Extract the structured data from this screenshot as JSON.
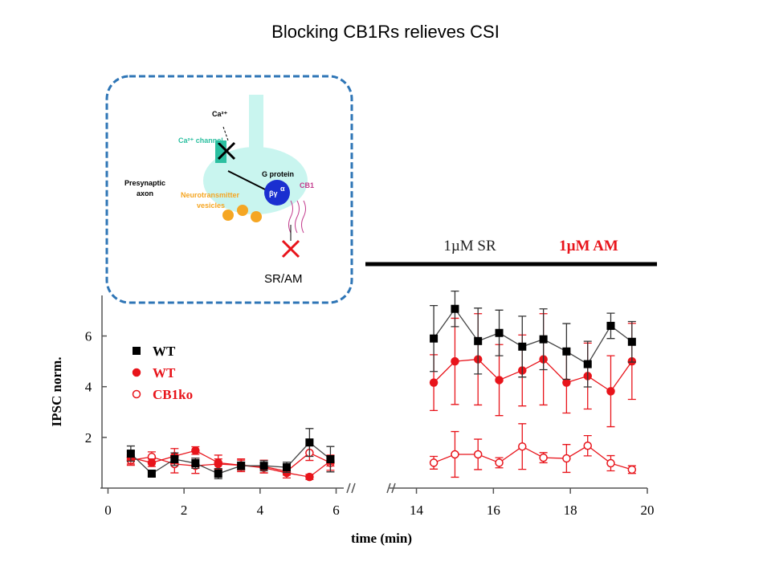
{
  "title": "Blocking CB1Rs relieves CSI",
  "diagram": {
    "ca_ion": "Ca²⁺",
    "ca_channel": "Ca²⁺ channel",
    "axon": [
      "Presynaptic",
      "axon"
    ],
    "g_protein": "G protein",
    "vesicles": [
      "Neurotransmitter",
      "vesicles"
    ],
    "receptor": "CB1",
    "beta_gamma": "βγ",
    "alpha": "α",
    "drug": "SR/AM"
  },
  "chart_data": {
    "type": "line",
    "y_label": "IPSC norm.",
    "x_label": "time (min)",
    "ylim": [
      0,
      7.6
    ],
    "yticks": [
      2,
      4,
      6
    ],
    "segments": [
      {
        "xlim": [
          -0.2,
          6.2
        ],
        "xticks": [
          0,
          2,
          4,
          6
        ]
      },
      {
        "xlim": [
          13.3,
          20
        ],
        "xticks": [
          14,
          16,
          18,
          20
        ]
      }
    ],
    "annotations": [
      {
        "text": "1µM SR",
        "color": "#222222"
      },
      {
        "text": "1µM AM",
        "color": "#e8141b"
      }
    ],
    "x": [
      0.6,
      1.15,
      1.75,
      2.3,
      2.9,
      3.5,
      4.1,
      4.7,
      5.3,
      5.85,
      14.45,
      15.0,
      15.6,
      16.15,
      16.75,
      17.3,
      17.9,
      18.45,
      19.05,
      19.6
    ],
    "series": [
      {
        "name": "CB1ko",
        "color": "#e8141b",
        "marker": "open-circle",
        "values": [
          1.1,
          1.23,
          0.95,
          0.88,
          0.95,
          0.9,
          0.85,
          0.66,
          1.39,
          1.0,
          1.0,
          1.33,
          1.33,
          1.0,
          1.64,
          1.2,
          1.17,
          1.67,
          0.98,
          0.73
        ],
        "errors": [
          0.2,
          0.2,
          0.35,
          0.3,
          0.2,
          0.2,
          0.25,
          0.15,
          0.3,
          0.3,
          0.25,
          0.9,
          0.6,
          0.2,
          0.9,
          0.2,
          0.55,
          0.4,
          0.3,
          0.15
        ]
      },
      {
        "name": "WT",
        "color": "#e8141b",
        "marker": "circle",
        "values": [
          1.2,
          1.0,
          1.26,
          1.48,
          1.0,
          0.9,
          0.8,
          0.6,
          0.44,
          1.07,
          4.16,
          5.0,
          5.08,
          4.26,
          4.64,
          5.08,
          4.16,
          4.42,
          3.82,
          5.0
        ],
        "errors": [
          0.25,
          0.15,
          0.3,
          0.15,
          0.3,
          0.25,
          0.2,
          0.2,
          0.1,
          0.2,
          1.1,
          1.7,
          1.8,
          1.4,
          1.4,
          1.8,
          1.2,
          1.3,
          1.4,
          1.5
        ]
      },
      {
        "name": "WT",
        "color": "#000000",
        "marker": "square",
        "values": [
          1.36,
          0.57,
          1.14,
          0.98,
          0.57,
          0.88,
          0.88,
          0.82,
          1.8,
          1.14,
          5.9,
          7.07,
          5.8,
          6.12,
          5.58,
          5.87,
          5.39,
          4.89,
          6.4,
          5.77
        ],
        "errors": [
          0.3,
          0.1,
          0.25,
          0.2,
          0.2,
          0.15,
          0.2,
          0.2,
          0.55,
          0.5,
          1.3,
          0.7,
          1.3,
          0.9,
          1.2,
          1.2,
          1.1,
          0.9,
          0.5,
          0.8
        ]
      }
    ]
  }
}
